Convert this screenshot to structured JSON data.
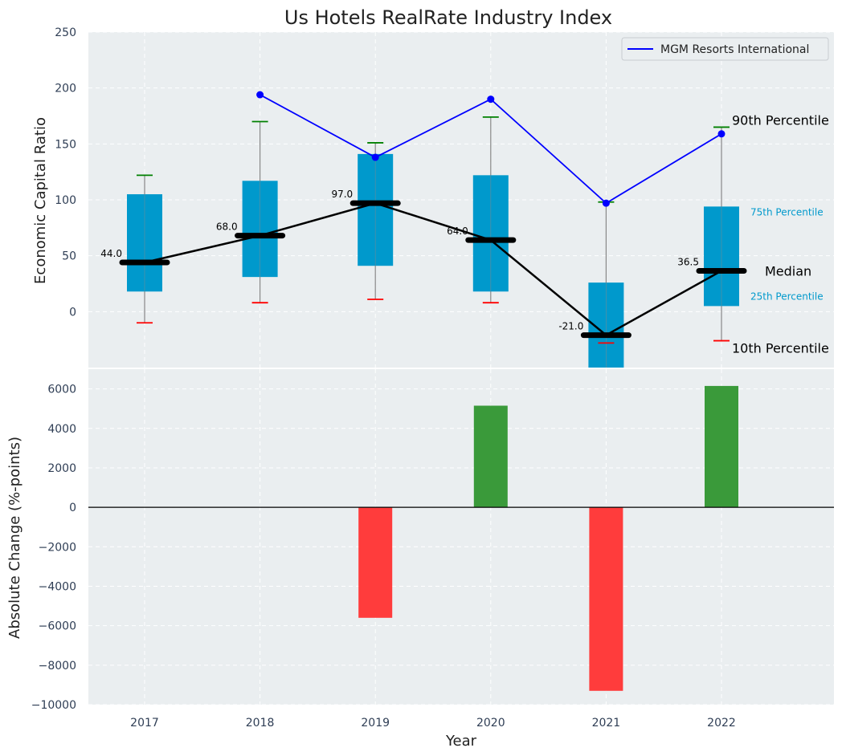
{
  "chart_data": [
    {
      "type": "box",
      "title": "Us Hotels RealRate Industry Index",
      "ylabel": "Economic Capital Ratio",
      "ylim": [
        -50,
        250
      ],
      "yticks": [
        0,
        50,
        100,
        150,
        200,
        250
      ],
      "categories": [
        "2017",
        "2018",
        "2019",
        "2020",
        "2021",
        "2022"
      ],
      "percentiles": {
        "p10": [
          -10,
          8,
          11,
          8,
          -28,
          -26
        ],
        "p25": [
          18,
          31,
          41,
          18,
          -52,
          5
        ],
        "median": [
          44.0,
          68.0,
          97.0,
          64.0,
          -21.0,
          36.5
        ],
        "p75": [
          105,
          117,
          141,
          122,
          26,
          94
        ],
        "p90": [
          122,
          170,
          151,
          174,
          98,
          165
        ]
      },
      "median_labels": [
        "44.0",
        "68.0",
        "97.0",
        "64.0",
        "-21.0",
        "36.5"
      ],
      "series": [
        {
          "name": "MGM Resorts International",
          "color": "#0000ff",
          "values": [
            null,
            194,
            138,
            190,
            97,
            159
          ]
        }
      ],
      "annotations": {
        "p90": "90th Percentile",
        "p75": "75th Percentile",
        "median": "Median",
        "p25": "25th Percentile",
        "p10": "10th Percentile"
      },
      "legend": {
        "position": "top-right"
      }
    },
    {
      "type": "bar",
      "xlabel": "Year",
      "ylabel": "Absolute Change (%-points)",
      "ylim": [
        -10000,
        7000
      ],
      "yticks": [
        -10000,
        -8000,
        -6000,
        -4000,
        -2000,
        0,
        2000,
        4000,
        6000
      ],
      "categories": [
        "2017",
        "2018",
        "2019",
        "2020",
        "2021",
        "2022"
      ],
      "values": [
        0,
        0,
        -5600,
        5150,
        -9300,
        6150
      ]
    }
  ],
  "colors": {
    "box": "#0099cc",
    "median": "#000000",
    "whisker": "#888888",
    "cap_high": "#008000",
    "cap_low": "#ff0000",
    "company": "#0000ff",
    "positive": "#3a9a3a",
    "negative": "#ff3c3c",
    "plot_bg": "#eaeef0"
  }
}
